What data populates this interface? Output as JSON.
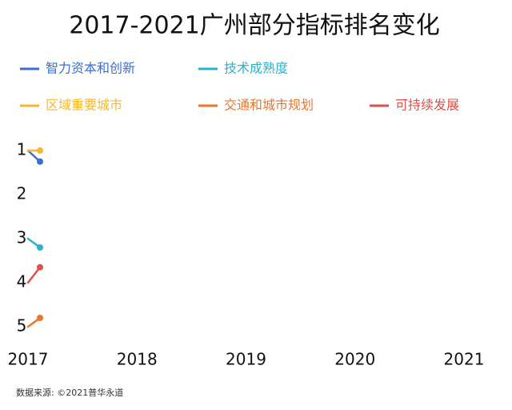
{
  "chart_data": {
    "type": "line",
    "title": "2017-2021广州部分指标排名变化",
    "x": [
      2017,
      2017.11
    ],
    "xlim": [
      2017,
      2021
    ],
    "xticks": [
      2017,
      2018,
      2019,
      2020,
      2021
    ],
    "ylim": [
      1,
      5
    ],
    "y_inverted": true,
    "yticks": [
      1,
      2,
      3,
      4,
      5
    ],
    "series": [
      {
        "name": "智力资本和创新",
        "color": "#3b6ed0",
        "values": [
          1,
          1.25
        ]
      },
      {
        "name": "技术成熟度",
        "color": "#2ab3c9",
        "values": [
          3,
          3.2
        ]
      },
      {
        "name": "区域重要城市",
        "color": "#f5b830",
        "values": [
          1,
          1
        ]
      },
      {
        "name": "交通和城市规划",
        "color": "#e8762d",
        "values": [
          5,
          4.8
        ]
      },
      {
        "name": "可持续发展",
        "color": "#e0504a",
        "values": [
          4,
          3.65
        ]
      }
    ],
    "source": "数据来源: ©2021普华永道"
  }
}
